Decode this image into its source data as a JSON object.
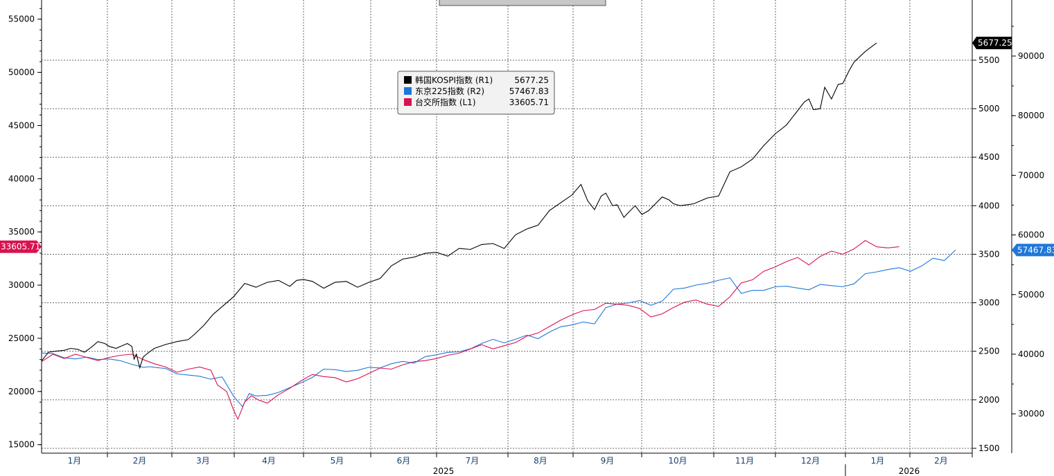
{
  "chart_data": {
    "type": "line",
    "left_axis": {
      "ticks": [
        15000,
        20000,
        25000,
        30000,
        35000,
        40000,
        45000,
        50000,
        55000
      ],
      "ylim": [
        14200,
        56800
      ]
    },
    "right_axis_1": {
      "ticks": [
        1500,
        2000,
        2500,
        3000,
        3500,
        4000,
        4500,
        5000,
        5500
      ],
      "ylim": [
        1450,
        6120
      ]
    },
    "right_axis_2": {
      "ticks": [
        30000,
        40000,
        50000,
        60000,
        70000,
        80000,
        90000
      ],
      "ylim": [
        23400,
        99400
      ]
    },
    "x_months": [
      "1月",
      "2月",
      "3月",
      "4月",
      "5月",
      "6月",
      "7月",
      "8月",
      "9月",
      "10月",
      "11月",
      "12月",
      "1月",
      "2月"
    ],
    "x_years": [
      {
        "label": "2025",
        "month_index": 5.5
      },
      {
        "label": "2026",
        "month_index": 12.8
      }
    ],
    "grid": true,
    "legend": {
      "position": "top-center",
      "entries": [
        {
          "name": "韩国KOSPI指数 (R1)",
          "value": "5677.25",
          "color": "#000000"
        },
        {
          "name": "东京225指数 (R2)",
          "value": "57467.83",
          "color": "#1f77d9"
        },
        {
          "name": "台交所指数 (L1)",
          "value": "33605.71",
          "color": "#d9124f"
        }
      ]
    },
    "last_value_tags": {
      "kospi": "5677.25",
      "nikkei": "57467.83",
      "taiex": "33605.71"
    },
    "series": [
      {
        "name": "韩国KOSPI指数 (R1)",
        "axis": "R1",
        "color": "#000000",
        "points": [
          [
            0,
            2400
          ],
          [
            0.3,
            2490
          ],
          [
            0.6,
            2500
          ],
          [
            1.0,
            2510
          ],
          [
            1.3,
            2530
          ],
          [
            1.6,
            2520
          ],
          [
            1.9,
            2490
          ],
          [
            2.2,
            2540
          ],
          [
            2.5,
            2600
          ],
          [
            2.8,
            2580
          ],
          [
            3.0,
            2550
          ],
          [
            3.3,
            2530
          ],
          [
            3.6,
            2560
          ],
          [
            3.8,
            2580
          ],
          [
            4.0,
            2550
          ],
          [
            4.1,
            2420
          ],
          [
            4.2,
            2470
          ],
          [
            4.35,
            2330
          ],
          [
            4.5,
            2440
          ],
          [
            4.7,
            2480
          ],
          [
            5.0,
            2530
          ],
          [
            5.5,
            2570
          ],
          [
            6.0,
            2600
          ],
          [
            6.5,
            2620
          ],
          [
            6.8,
            2680
          ],
          [
            7.2,
            2770
          ],
          [
            7.6,
            2880
          ],
          [
            8.0,
            2960
          ],
          [
            8.5,
            3060
          ],
          [
            9.0,
            3200
          ],
          [
            9.5,
            3160
          ],
          [
            10.0,
            3210
          ],
          [
            10.5,
            3230
          ],
          [
            11.0,
            3170
          ],
          [
            11.3,
            3230
          ],
          [
            11.6,
            3240
          ],
          [
            12.0,
            3220
          ],
          [
            12.5,
            3150
          ],
          [
            13.0,
            3210
          ],
          [
            13.5,
            3220
          ],
          [
            14.0,
            3160
          ],
          [
            14.5,
            3210
          ],
          [
            15.0,
            3250
          ],
          [
            15.5,
            3380
          ],
          [
            16.0,
            3450
          ],
          [
            16.5,
            3470
          ],
          [
            17.0,
            3510
          ],
          [
            17.5,
            3520
          ],
          [
            18.0,
            3480
          ],
          [
            18.5,
            3560
          ],
          [
            19.0,
            3550
          ],
          [
            19.5,
            3600
          ],
          [
            20.0,
            3610
          ],
          [
            20.5,
            3560
          ],
          [
            21.0,
            3700
          ],
          [
            21.5,
            3760
          ],
          [
            22.0,
            3800
          ],
          [
            22.5,
            3950
          ],
          [
            23.0,
            4030
          ],
          [
            23.5,
            4110
          ],
          [
            23.9,
            4220
          ],
          [
            24.2,
            4050
          ],
          [
            24.5,
            3960
          ],
          [
            24.8,
            4100
          ],
          [
            25.0,
            4130
          ],
          [
            25.3,
            4000
          ],
          [
            25.5,
            4010
          ],
          [
            25.8,
            3880
          ],
          [
            26.0,
            3930
          ],
          [
            26.3,
            4000
          ],
          [
            26.6,
            3910
          ],
          [
            26.9,
            3950
          ],
          [
            27.2,
            4020
          ],
          [
            27.5,
            4090
          ],
          [
            27.8,
            4060
          ],
          [
            28.0,
            4020
          ],
          [
            28.3,
            4000
          ],
          [
            28.6,
            4010
          ],
          [
            28.9,
            4020
          ],
          [
            29.2,
            4050
          ],
          [
            29.5,
            4080
          ],
          [
            30.0,
            4100
          ],
          [
            30.5,
            4350
          ],
          [
            31.0,
            4400
          ],
          [
            31.5,
            4480
          ],
          [
            32.0,
            4620
          ],
          [
            32.5,
            4740
          ],
          [
            33.0,
            4830
          ],
          [
            33.4,
            4950
          ],
          [
            33.8,
            5070
          ],
          [
            34.0,
            5100
          ],
          [
            34.2,
            4990
          ],
          [
            34.5,
            5000
          ],
          [
            34.7,
            5220
          ],
          [
            35.0,
            5100
          ],
          [
            35.3,
            5250
          ],
          [
            35.5,
            5260
          ],
          [
            35.8,
            5400
          ],
          [
            36.0,
            5480
          ],
          [
            36.5,
            5590
          ],
          [
            37.0,
            5677.25
          ]
        ]
      },
      {
        "name": "东京225指数 (R2)",
        "axis": "R2",
        "color": "#1f77d9",
        "points": [
          [
            0,
            40200
          ],
          [
            0.5,
            40100
          ],
          [
            1.0,
            39400
          ],
          [
            1.5,
            39200
          ],
          [
            2.0,
            39500
          ],
          [
            2.5,
            39100
          ],
          [
            3.0,
            39200
          ],
          [
            3.5,
            38900
          ],
          [
            4.0,
            38300
          ],
          [
            4.5,
            37800
          ],
          [
            4.8,
            37900
          ],
          [
            5.0,
            37800
          ],
          [
            5.5,
            37600
          ],
          [
            6.0,
            36700
          ],
          [
            6.5,
            36500
          ],
          [
            7.0,
            36300
          ],
          [
            7.5,
            35800
          ],
          [
            8.0,
            36200
          ],
          [
            8.5,
            33000
          ],
          [
            8.9,
            31200
          ],
          [
            9.2,
            33400
          ],
          [
            9.5,
            33000
          ],
          [
            10.0,
            33100
          ],
          [
            10.5,
            33600
          ],
          [
            11.0,
            34400
          ],
          [
            11.5,
            35200
          ],
          [
            12.0,
            36100
          ],
          [
            12.5,
            37500
          ],
          [
            13.0,
            37400
          ],
          [
            13.5,
            37100
          ],
          [
            14.0,
            37300
          ],
          [
            14.5,
            37800
          ],
          [
            15.0,
            37700
          ],
          [
            15.5,
            38400
          ],
          [
            16.0,
            38800
          ],
          [
            16.5,
            38500
          ],
          [
            17.0,
            39600
          ],
          [
            17.5,
            39900
          ],
          [
            18.0,
            40300
          ],
          [
            18.5,
            40400
          ],
          [
            19.0,
            40900
          ],
          [
            19.5,
            41800
          ],
          [
            20.0,
            42500
          ],
          [
            20.5,
            41900
          ],
          [
            21.0,
            42500
          ],
          [
            21.5,
            43200
          ],
          [
            22.0,
            42600
          ],
          [
            22.5,
            43700
          ],
          [
            23.0,
            44600
          ],
          [
            23.5,
            44900
          ],
          [
            24.0,
            45400
          ],
          [
            24.5,
            45100
          ],
          [
            25.0,
            47800
          ],
          [
            25.5,
            48400
          ],
          [
            26.0,
            48600
          ],
          [
            26.5,
            49000
          ],
          [
            27.0,
            48200
          ],
          [
            27.5,
            48900
          ],
          [
            28.0,
            50900
          ],
          [
            28.5,
            51100
          ],
          [
            29.0,
            51600
          ],
          [
            29.5,
            51900
          ],
          [
            30.0,
            52400
          ],
          [
            30.5,
            52800
          ],
          [
            31.0,
            50200
          ],
          [
            31.5,
            50700
          ],
          [
            32.0,
            50700
          ],
          [
            32.5,
            51300
          ],
          [
            33.0,
            51400
          ],
          [
            33.5,
            51100
          ],
          [
            34.0,
            50800
          ],
          [
            34.5,
            51700
          ],
          [
            35.0,
            51500
          ],
          [
            35.5,
            51300
          ],
          [
            36.0,
            51800
          ],
          [
            36.5,
            53500
          ],
          [
            37.0,
            53800
          ],
          [
            37.5,
            54200
          ],
          [
            38.0,
            54500
          ],
          [
            38.5,
            53900
          ],
          [
            39.0,
            54800
          ],
          [
            39.5,
            56100
          ],
          [
            40.0,
            55700
          ],
          [
            40.5,
            57467.83
          ]
        ]
      },
      {
        "name": "台交所指数 (L1)",
        "axis": "L1",
        "color": "#d9124f",
        "points": [
          [
            0,
            22800
          ],
          [
            0.5,
            23500
          ],
          [
            1.0,
            23100
          ],
          [
            1.5,
            23500
          ],
          [
            2.0,
            23200
          ],
          [
            2.5,
            22900
          ],
          [
            3.0,
            23200
          ],
          [
            3.5,
            23400
          ],
          [
            4.0,
            23500
          ],
          [
            4.5,
            23000
          ],
          [
            5.0,
            22600
          ],
          [
            5.5,
            22300
          ],
          [
            6.0,
            21800
          ],
          [
            6.5,
            22100
          ],
          [
            7.0,
            22300
          ],
          [
            7.5,
            22000
          ],
          [
            7.8,
            20600
          ],
          [
            8.2,
            20000
          ],
          [
            8.5,
            18300
          ],
          [
            8.7,
            17400
          ],
          [
            9.0,
            19000
          ],
          [
            9.3,
            19600
          ],
          [
            9.6,
            19200
          ],
          [
            10.0,
            18900
          ],
          [
            10.5,
            19700
          ],
          [
            11.0,
            20300
          ],
          [
            11.5,
            21000
          ],
          [
            12.0,
            21600
          ],
          [
            12.5,
            21400
          ],
          [
            13.0,
            21300
          ],
          [
            13.5,
            20900
          ],
          [
            14.0,
            21200
          ],
          [
            14.5,
            21700
          ],
          [
            15.0,
            22200
          ],
          [
            15.5,
            22100
          ],
          [
            16.0,
            22500
          ],
          [
            16.5,
            22800
          ],
          [
            17.0,
            22900
          ],
          [
            17.5,
            23100
          ],
          [
            18.0,
            23400
          ],
          [
            18.5,
            23600
          ],
          [
            19.0,
            24000
          ],
          [
            19.5,
            24400
          ],
          [
            20.0,
            24000
          ],
          [
            20.5,
            24300
          ],
          [
            21.0,
            24600
          ],
          [
            21.5,
            25200
          ],
          [
            22.0,
            25500
          ],
          [
            22.5,
            26100
          ],
          [
            23.0,
            26700
          ],
          [
            23.5,
            27200
          ],
          [
            24.0,
            27600
          ],
          [
            24.5,
            27700
          ],
          [
            25.0,
            28300
          ],
          [
            25.5,
            28200
          ],
          [
            26.0,
            28100
          ],
          [
            26.5,
            27800
          ],
          [
            27.0,
            27000
          ],
          [
            27.5,
            27300
          ],
          [
            28.0,
            27900
          ],
          [
            28.5,
            28400
          ],
          [
            29.0,
            28600
          ],
          [
            29.5,
            28200
          ],
          [
            30.0,
            28000
          ],
          [
            30.5,
            28900
          ],
          [
            31.0,
            30200
          ],
          [
            31.5,
            30500
          ],
          [
            32.0,
            31300
          ],
          [
            32.5,
            31700
          ],
          [
            33.0,
            32200
          ],
          [
            33.5,
            32600
          ],
          [
            34.0,
            31900
          ],
          [
            34.5,
            32700
          ],
          [
            35.0,
            33200
          ],
          [
            35.5,
            32900
          ],
          [
            36.0,
            33400
          ],
          [
            36.5,
            34200
          ],
          [
            37.0,
            33600
          ],
          [
            37.5,
            33500
          ],
          [
            38.0,
            33605.71
          ]
        ]
      }
    ]
  }
}
